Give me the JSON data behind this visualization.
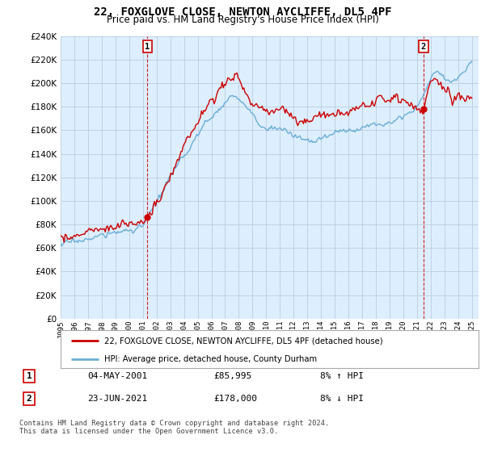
{
  "title": "22, FOXGLOVE CLOSE, NEWTON AYCLIFFE, DL5 4PF",
  "subtitle": "Price paid vs. HM Land Registry's House Price Index (HPI)",
  "hpi_color": "#6baed6",
  "price_color": "#cc0000",
  "chart_bg": "#ddeeff",
  "sale1_year": 2001.33,
  "sale1_price": 85995,
  "sale1_label": "1",
  "sale2_year": 2021.47,
  "sale2_price": 178000,
  "sale2_label": "2",
  "ylim_min": 0,
  "ylim_max": 240000,
  "ytick_step": 20000,
  "legend_entry1": "22, FOXGLOVE CLOSE, NEWTON AYCLIFFE, DL5 4PF (detached house)",
  "legend_entry2": "HPI: Average price, detached house, County Durham",
  "table_row1_num": "1",
  "table_row1_date": "04-MAY-2001",
  "table_row1_price": "£85,995",
  "table_row1_hpi": "8% ↑ HPI",
  "table_row2_num": "2",
  "table_row2_date": "23-JUN-2021",
  "table_row2_price": "£178,000",
  "table_row2_hpi": "8% ↓ HPI",
  "footer": "Contains HM Land Registry data © Crown copyright and database right 2024.\nThis data is licensed under the Open Government Licence v3.0.",
  "bg_color": "#ffffff",
  "grid_color": "#bbccdd"
}
